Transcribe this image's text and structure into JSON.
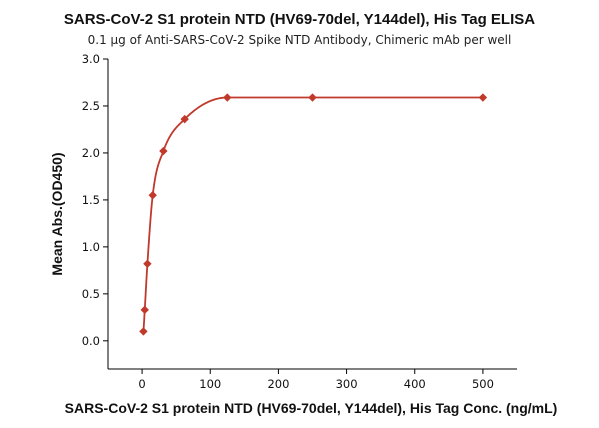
{
  "chart_data": {
    "type": "scatter",
    "title": "SARS-CoV-2 S1 protein NTD (HV69-70del, Y144del), His Tag ELISA",
    "subtitle": "0.1 μg of Anti-SARS-CoV-2 Spike NTD Antibody, Chimeric mAb per well",
    "xlabel": "SARS-CoV-2 S1 protein NTD (HV69-70del, Y144del), His Tag Conc. (ng/mL)",
    "ylabel": "Mean Abs.(OD450)",
    "xlim": [
      -50,
      550
    ],
    "ylim": [
      -0.3,
      3.0
    ],
    "x_ticks": [
      0,
      100,
      200,
      300,
      400,
      500
    ],
    "x_tick_labels": [
      "0",
      "100",
      "200",
      "300",
      "400",
      "500"
    ],
    "y_ticks": [
      0.0,
      0.5,
      1.0,
      1.5,
      2.0,
      2.5,
      3.0
    ],
    "y_tick_labels": [
      "0.0",
      "0.5",
      "1.0",
      "1.5",
      "2.0",
      "2.5",
      "3.0"
    ],
    "grid": false,
    "legend": "none",
    "marker": "diamond",
    "color": "#c0392b",
    "series": [
      {
        "x": [
          1.95,
          3.9,
          7.8,
          15.6,
          31.25,
          62.5,
          125,
          250,
          500
        ],
        "y": [
          0.1,
          0.33,
          0.82,
          1.55,
          2.02,
          2.36,
          2.59,
          2.59,
          2.59
        ]
      }
    ],
    "fit_curve": "smooth saturating fit through the points"
  }
}
